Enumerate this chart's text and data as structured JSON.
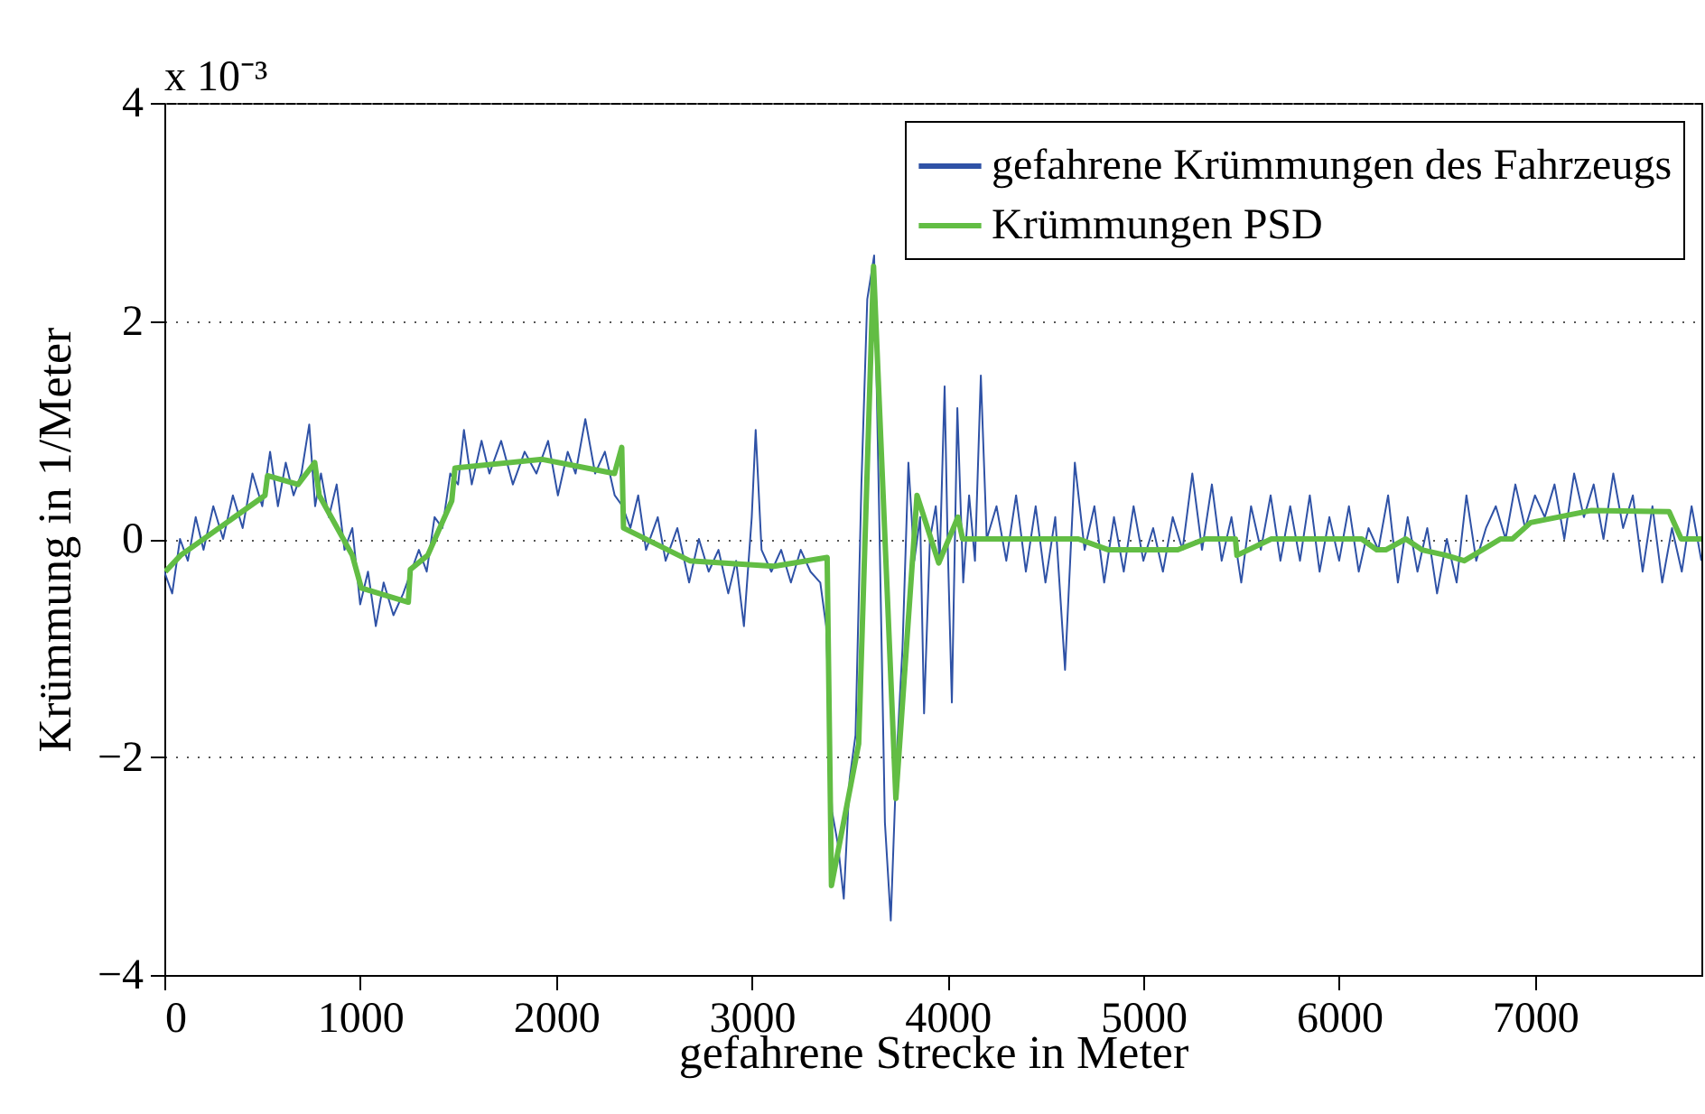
{
  "chart_data": {
    "type": "line",
    "xlabel": "gefahrene Strecke in Meter",
    "ylabel": "Krümmung in 1/Meter",
    "annotations": [
      "x 10⁻³"
    ],
    "xlim": [
      0,
      7850
    ],
    "xticks": [
      0,
      1000,
      2000,
      3000,
      4000,
      5000,
      6000,
      7000
    ],
    "ylim": [
      -4,
      4
    ],
    "yticks": [
      {
        "value": -4,
        "label": "−4"
      },
      {
        "value": -2,
        "label": "−2"
      },
      0,
      2,
      4
    ],
    "grid": "y",
    "legend": "top right",
    "line_style": "solid",
    "marker": "none",
    "series": [
      {
        "name": "gefahrene Krümmungen des Fahrzeugs",
        "color": "#2f52a6",
        "x": [
          0,
          40,
          80,
          120,
          160,
          200,
          250,
          300,
          350,
          400,
          450,
          500,
          540,
          580,
          620,
          660,
          700,
          740,
          770,
          800,
          840,
          880,
          920,
          960,
          1000,
          1040,
          1080,
          1120,
          1170,
          1220,
          1260,
          1300,
          1340,
          1380,
          1420,
          1460,
          1500,
          1530,
          1570,
          1620,
          1660,
          1720,
          1780,
          1840,
          1900,
          1960,
          2010,
          2060,
          2100,
          2150,
          2200,
          2250,
          2300,
          2340,
          2380,
          2420,
          2460,
          2520,
          2560,
          2620,
          2680,
          2730,
          2780,
          2830,
          2880,
          2920,
          2960,
          3000,
          3020,
          3050,
          3100,
          3150,
          3200,
          3250,
          3300,
          3350,
          3380,
          3410,
          3440,
          3470,
          3500,
          3530,
          3560,
          3590,
          3625,
          3650,
          3680,
          3710,
          3740,
          3770,
          3800,
          3830,
          3860,
          3880,
          3910,
          3940,
          3960,
          3985,
          4000,
          4022,
          4050,
          4080,
          4110,
          4140,
          4170,
          4200,
          4250,
          4300,
          4350,
          4400,
          4450,
          4500,
          4550,
          4600,
          4650,
          4700,
          4750,
          4800,
          4850,
          4900,
          4950,
          5000,
          5050,
          5100,
          5150,
          5200,
          5250,
          5300,
          5350,
          5400,
          5450,
          5500,
          5550,
          5600,
          5650,
          5700,
          5750,
          5800,
          5850,
          5900,
          5950,
          6000,
          6050,
          6100,
          6150,
          6200,
          6250,
          6300,
          6350,
          6400,
          6450,
          6500,
          6550,
          6600,
          6650,
          6700,
          6750,
          6800,
          6850,
          6900,
          6950,
          7000,
          7050,
          7100,
          7150,
          7200,
          7250,
          7300,
          7350,
          7400,
          7450,
          7500,
          7550,
          7600,
          7650,
          7700,
          7750,
          7800,
          7850
        ],
        "values": [
          -0.3,
          -0.5,
          0,
          -0.2,
          0.2,
          -0.1,
          0.3,
          0,
          0.4,
          0.1,
          0.6,
          0.3,
          0.8,
          0.3,
          0.7,
          0.4,
          0.6,
          1.05,
          0.3,
          0.6,
          0.2,
          0.5,
          -0.1,
          0.1,
          -0.6,
          -0.3,
          -0.8,
          -0.4,
          -0.7,
          -0.5,
          -0.3,
          -0.1,
          -0.3,
          0.2,
          0.1,
          0.6,
          0.5,
          1.0,
          0.5,
          0.9,
          0.6,
          0.9,
          0.5,
          0.8,
          0.6,
          0.9,
          0.4,
          0.8,
          0.6,
          1.1,
          0.6,
          0.8,
          0.4,
          0.3,
          0.1,
          0.4,
          -0.1,
          0.2,
          -0.2,
          0.1,
          -0.4,
          0,
          -0.3,
          -0.1,
          -0.5,
          -0.2,
          -0.8,
          0.2,
          1.0,
          -0.1,
          -0.3,
          -0.1,
          -0.4,
          -0.1,
          -0.3,
          -0.4,
          -0.8,
          -2.5,
          -2.8,
          -3.3,
          -2.2,
          -1.8,
          0.5,
          2.2,
          2.6,
          0.3,
          -2.6,
          -3.5,
          -2.0,
          -1.0,
          0.7,
          -0.2,
          0.2,
          -1.6,
          0,
          0.3,
          -0.2,
          1.4,
          0,
          -1.5,
          1.2,
          -0.4,
          0.4,
          -0.2,
          1.5,
          0.0,
          0.3,
          -0.2,
          0.4,
          -0.3,
          0.3,
          -0.4,
          0.2,
          -1.2,
          0.7,
          -0.1,
          0.3,
          -0.4,
          0.2,
          -0.3,
          0.3,
          -0.2,
          0.1,
          -0.3,
          0.2,
          -0.1,
          0.6,
          -0.1,
          0.5,
          -0.2,
          0.2,
          -0.4,
          0.3,
          -0.1,
          0.4,
          -0.2,
          0.3,
          -0.2,
          0.4,
          -0.3,
          0.2,
          -0.2,
          0.3,
          -0.3,
          0.1,
          -0.1,
          0.4,
          -0.4,
          0.2,
          -0.3,
          0.1,
          -0.5,
          0.0,
          -0.4,
          0.4,
          -0.2,
          0.1,
          0.3,
          0.0,
          0.5,
          0.1,
          0.4,
          0.2,
          0.5,
          0.0,
          0.6,
          0.2,
          0.5,
          0.0,
          0.6,
          0.1,
          0.4,
          -0.3,
          0.3,
          -0.4,
          0.1,
          -0.3,
          0.3,
          -0.2
        ]
      },
      {
        "name": "Krümmungen PSD",
        "color": "#62bd44",
        "x": [
          5,
          83,
          514,
          527,
          683,
          768,
          791,
          960,
          1006,
          1246,
          1256,
          1345,
          1468,
          1484,
          1930,
          2299,
          2336,
          2345,
          2683,
          3114,
          3385,
          3407,
          3546,
          3622,
          3736,
          3844,
          3955,
          4053,
          4077,
          4668,
          4822,
          5176,
          5316,
          5470,
          5478,
          5654,
          6115,
          6192,
          6238,
          6340,
          6423,
          6546,
          6639,
          6824,
          6885,
          6978,
          7285,
          7685,
          7747,
          7850
        ],
        "values": [
          -0.3,
          -0.15,
          0.4,
          0.58,
          0.5,
          0.7,
          0.4,
          -0.15,
          -0.45,
          -0.58,
          -0.28,
          -0.15,
          0.35,
          0.65,
          0.73,
          0.6,
          0.84,
          0.1,
          -0.2,
          -0.25,
          -0.17,
          -3.18,
          -1.88,
          2.5,
          -2.38,
          0.4,
          -0.22,
          0.2,
          0,
          0,
          -0.1,
          -0.1,
          0,
          0,
          -0.15,
          0,
          0,
          -0.1,
          -0.1,
          0,
          -0.1,
          -0.15,
          -0.2,
          0,
          0,
          0.15,
          0.26,
          0.25,
          0,
          0
        ]
      }
    ]
  }
}
